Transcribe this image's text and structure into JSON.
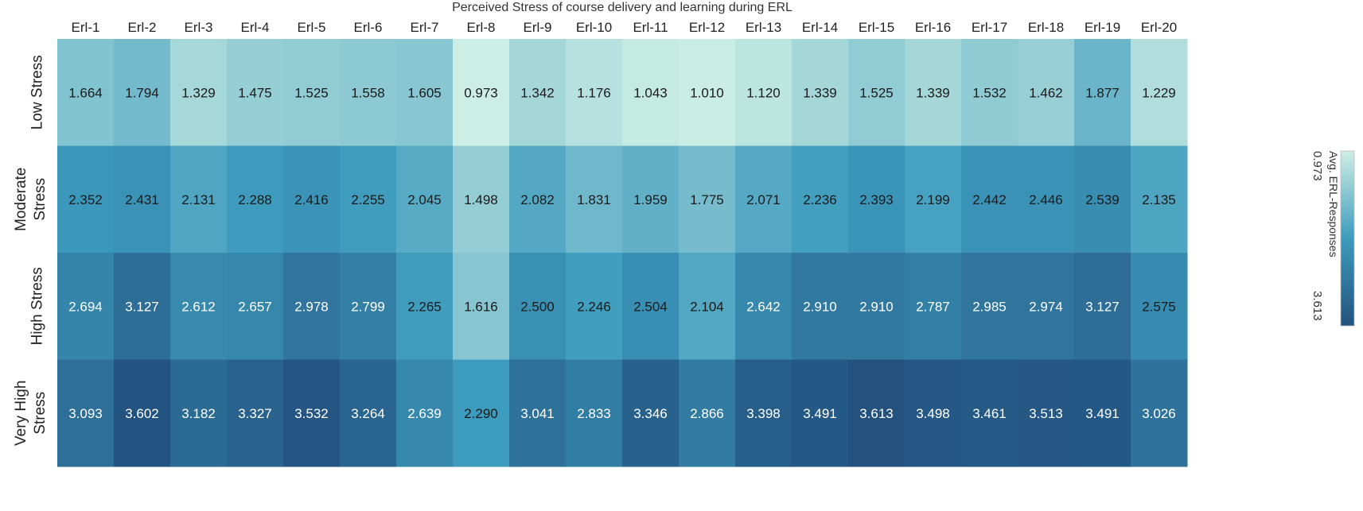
{
  "chart_data": {
    "type": "heatmap",
    "title": "Perceived Stress of course delivery and learning during ERL",
    "columns": [
      "Erl-1",
      "Erl-2",
      "Erl-3",
      "Erl-4",
      "Erl-5",
      "Erl-6",
      "Erl-7",
      "Erl-8",
      "Erl-9",
      "Erl-10",
      "Erl-11",
      "Erl-12",
      "Erl-13",
      "Erl-14",
      "Erl-15",
      "Erl-16",
      "Erl-17",
      "Erl-18",
      "Erl-19",
      "Erl-20"
    ],
    "rows": [
      {
        "label_lines": [
          "Low Stress"
        ],
        "values": [
          1.664,
          1.794,
          1.329,
          1.475,
          1.525,
          1.558,
          1.605,
          0.973,
          1.342,
          1.176,
          1.043,
          1.01,
          1.12,
          1.339,
          1.525,
          1.339,
          1.532,
          1.462,
          1.877,
          1.229
        ]
      },
      {
        "label_lines": [
          "Moderate",
          "Stress"
        ],
        "values": [
          2.352,
          2.431,
          2.131,
          2.288,
          2.416,
          2.255,
          2.045,
          1.498,
          2.082,
          1.831,
          1.959,
          1.775,
          2.071,
          2.236,
          2.393,
          2.199,
          2.442,
          2.446,
          2.539,
          2.135
        ]
      },
      {
        "label_lines": [
          "High Stress"
        ],
        "values": [
          2.694,
          3.127,
          2.612,
          2.657,
          2.978,
          2.799,
          2.265,
          1.616,
          2.5,
          2.246,
          2.504,
          2.104,
          2.642,
          2.91,
          2.91,
          2.787,
          2.985,
          2.974,
          3.127,
          2.575
        ]
      },
      {
        "label_lines": [
          "Very High",
          "Stress"
        ],
        "values": [
          3.093,
          3.602,
          3.182,
          3.327,
          3.532,
          3.264,
          2.639,
          2.29,
          3.041,
          2.833,
          3.346,
          2.866,
          3.398,
          3.491,
          3.613,
          3.498,
          3.461,
          3.513,
          3.491,
          3.026
        ]
      }
    ],
    "color_scale": {
      "min": 0.973,
      "max": 3.613,
      "min_color": "#cdeee4",
      "max_color": "#23527f",
      "mid_color": "#3d9bbd"
    },
    "legend": {
      "title": "Avg. ERL-Responses",
      "min_label": "0.973",
      "max_label": "3.613",
      "placement": "right"
    }
  }
}
